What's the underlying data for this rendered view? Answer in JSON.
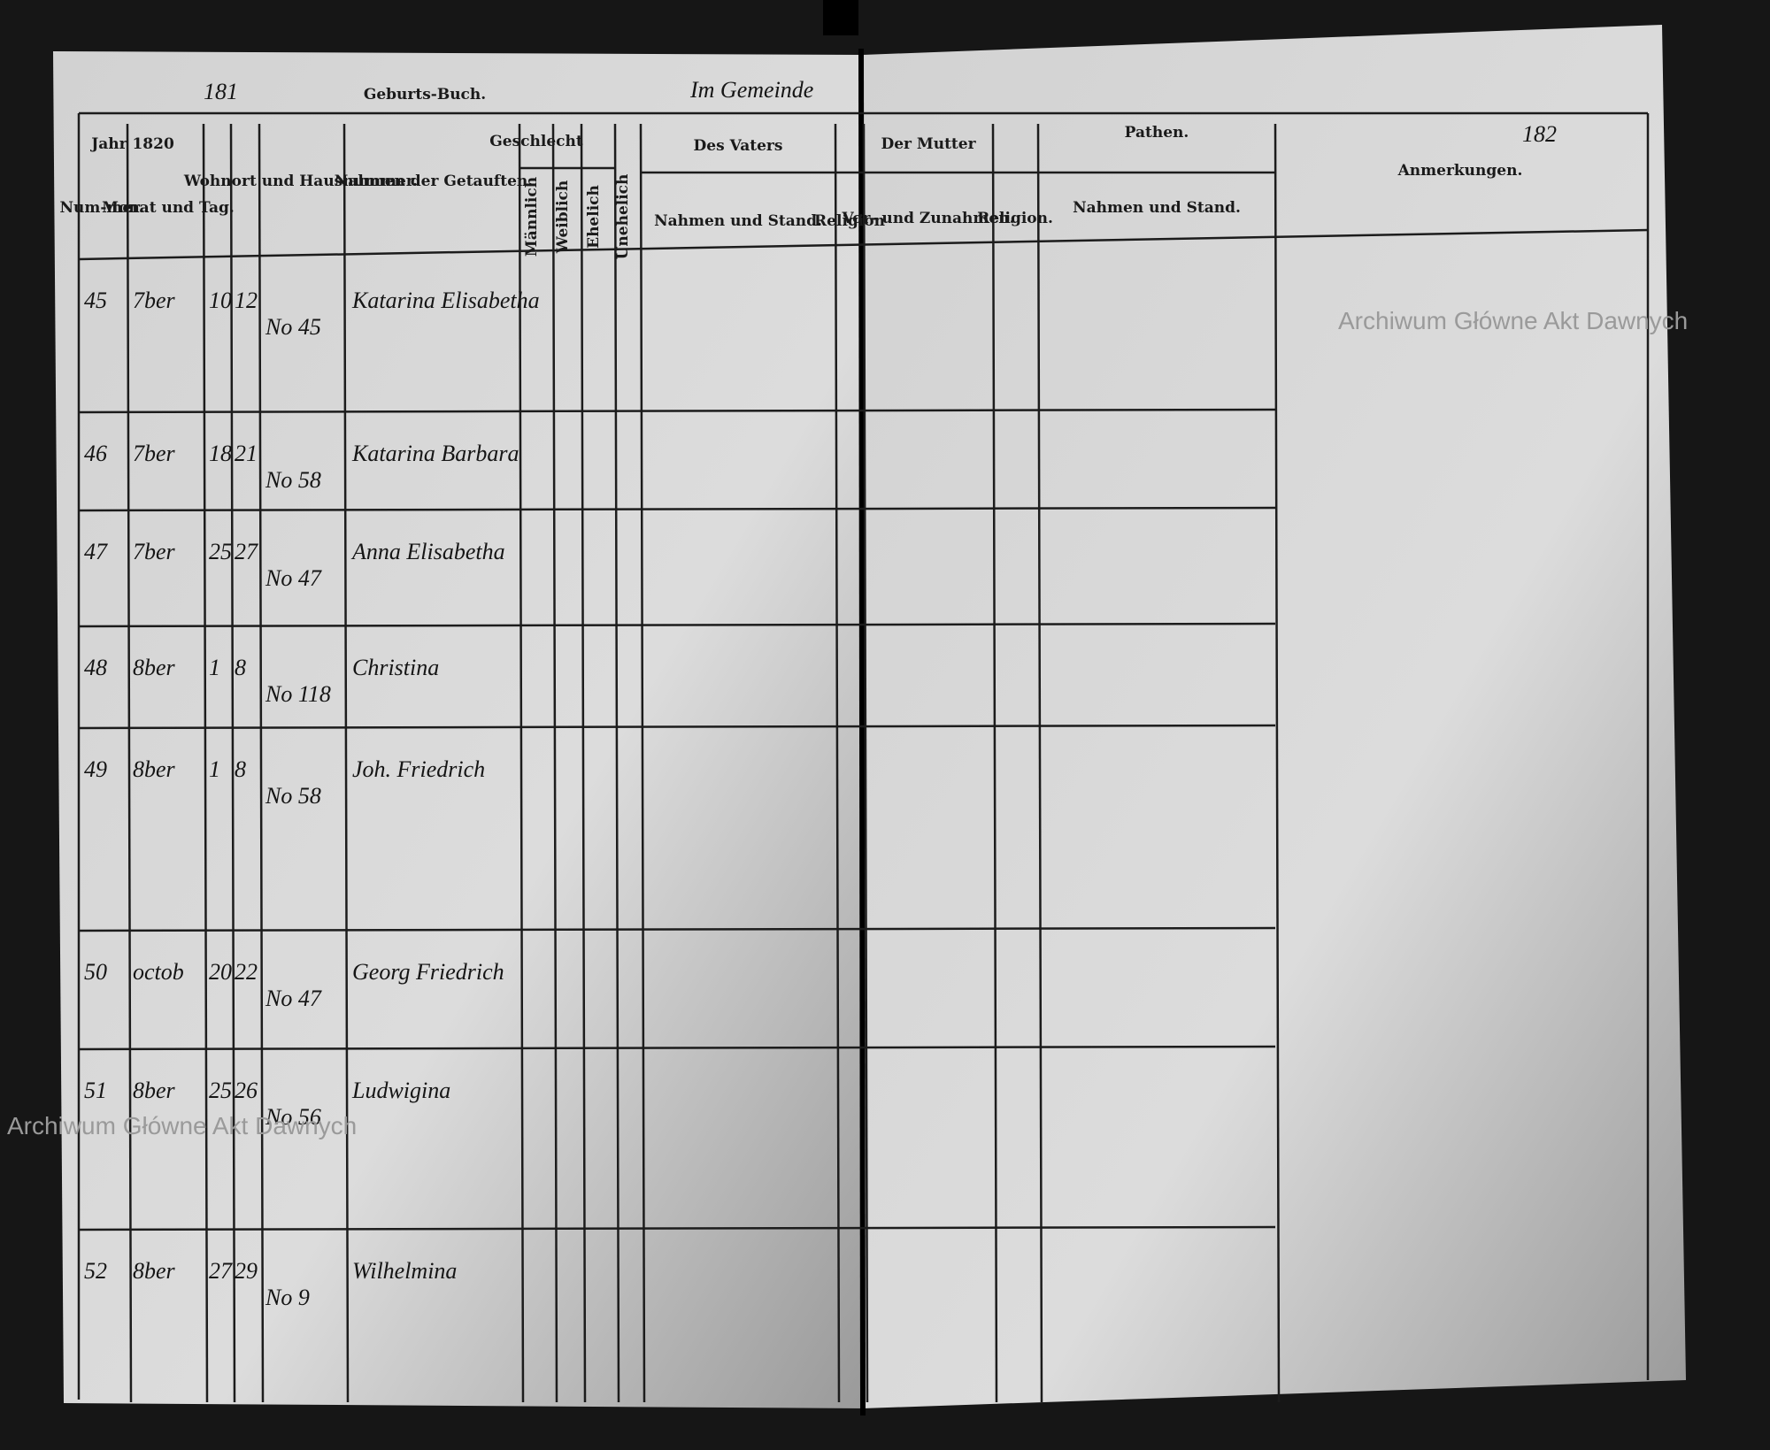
{
  "header": {
    "page_left": "181",
    "title": "Geburts-Buch.",
    "place": "Im Gemeinde",
    "page_right": "182"
  },
  "columns": {
    "year": "Jahr 1820",
    "number": "Num-mer.",
    "month": "Monat und Tag.",
    "residence": "Wohnort und Hausnummer.",
    "child": "Nahmen der Getauften.",
    "sex": "Geschlecht",
    "male": "Männlich",
    "female": "Weiblich",
    "legit": "Ehelich",
    "illegit": "Unehelich",
    "father": "Des Vaters",
    "father_name": "Nahmen und Stand.",
    "father_rel": "Religion",
    "mother": "Der Mutter",
    "mother_name": "Vor- und Zunahmen.",
    "mother_rel": "Religion.",
    "godparents": "Pathen.",
    "godparents_name": "Nahmen und Stand.",
    "remarks": "Anmerkungen."
  },
  "rows": [
    {
      "number": "45",
      "month": "7ber",
      "birth": "10",
      "baptism": "12",
      "house": "No 45",
      "child": "Katarina Elisabetha"
    },
    {
      "number": "46",
      "month": "7ber",
      "birth": "18",
      "baptism": "21",
      "house": "No 58",
      "child": "Katarina Barbara"
    },
    {
      "number": "47",
      "month": "7ber",
      "birth": "25",
      "baptism": "27",
      "house": "No 47",
      "child": "Anna Elisabetha"
    },
    {
      "number": "48",
      "month": "8ber",
      "birth": "1",
      "baptism": "8",
      "house": "No 118",
      "child": "Christina"
    },
    {
      "number": "49",
      "month": "8ber",
      "birth": "1",
      "baptism": "8",
      "house": "No 58",
      "child": "Joh. Friedrich"
    },
    {
      "number": "50",
      "month": "octob",
      "birth": "20",
      "baptism": "22",
      "house": "No 47",
      "child": "Georg Friedrich"
    },
    {
      "number": "51",
      "month": "8ber",
      "birth": "25",
      "baptism": "26",
      "house": "No 56",
      "child": "Ludwigina"
    },
    {
      "number": "52",
      "month": "8ber",
      "birth": "27",
      "baptism": "29",
      "house": "No 9",
      "child": "Wilhelmina"
    }
  ],
  "watermarks": [
    "Archiwum Główne Akt Dawnych",
    "Archiwum Główne Akt Dawnych"
  ]
}
